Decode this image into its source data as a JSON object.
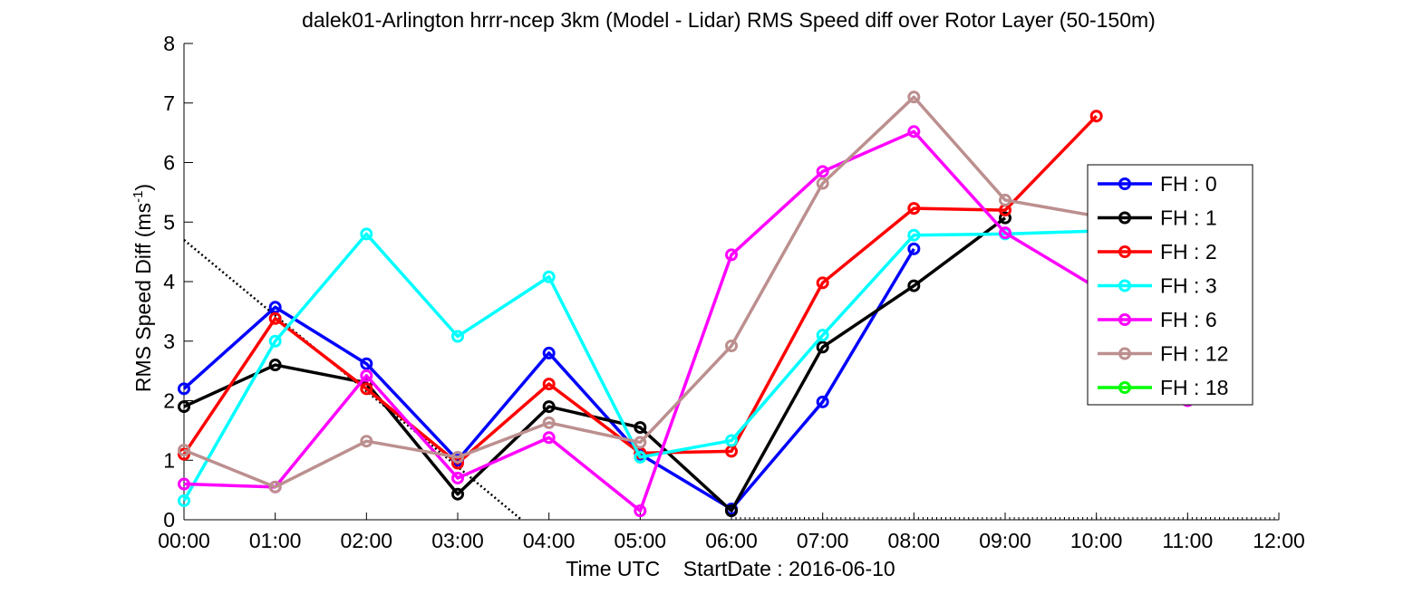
{
  "chart_data": {
    "type": "line",
    "title": "dalek01-Arlington hrrr-ncep 3km (Model - Lidar) RMS Speed diff over Rotor Layer (50-150m)",
    "xlabel": "Time UTC    StartDate : 2016-06-10",
    "ylabel_main": "RMS Speed Diff (ms",
    "ylabel_sup": "-1",
    "ylabel_end": ")",
    "x_ticks": [
      "00:00",
      "01:00",
      "02:00",
      "03:00",
      "04:00",
      "05:00",
      "06:00",
      "07:00",
      "08:00",
      "09:00",
      "10:00",
      "11:00",
      "12:00"
    ],
    "y_ticks": [
      "0",
      "1",
      "2",
      "3",
      "4",
      "5",
      "6",
      "7",
      "8"
    ],
    "xlim": [
      0,
      12
    ],
    "ylim": [
      0,
      8
    ],
    "grid": false,
    "legend_position": "right",
    "series": [
      {
        "name": "FH : 0",
        "color": "#0000ff",
        "x": [
          0,
          1,
          2,
          3,
          4,
          5,
          6,
          7,
          8
        ],
        "values": [
          2.2,
          3.57,
          2.62,
          1.0,
          2.8,
          1.1,
          0.18,
          1.98,
          4.55
        ]
      },
      {
        "name": "FH : 1",
        "color": "#000000",
        "x": [
          0,
          1,
          2,
          3,
          4,
          5,
          6,
          7,
          8,
          9
        ],
        "values": [
          1.9,
          2.6,
          2.3,
          0.43,
          1.9,
          1.55,
          0.15,
          2.9,
          3.93,
          5.07
        ]
      },
      {
        "name": "FH : 2",
        "color": "#ff0000",
        "x": [
          0,
          1,
          2,
          3,
          4,
          5,
          6,
          7,
          8,
          9,
          10
        ],
        "values": [
          1.1,
          3.38,
          2.2,
          0.95,
          2.28,
          1.12,
          1.15,
          3.98,
          5.23,
          5.2,
          6.78
        ]
      },
      {
        "name": "FH : 3",
        "color": "#00ffff",
        "x": [
          0,
          1,
          2,
          3,
          4,
          5,
          6,
          7,
          8,
          9,
          10
        ],
        "values": [
          0.32,
          3.0,
          4.8,
          3.08,
          4.08,
          1.05,
          1.33,
          3.1,
          4.78,
          4.8,
          4.85
        ]
      },
      {
        "name": "FH : 6",
        "color": "#ff00ff",
        "x": [
          0,
          1,
          2,
          3,
          4,
          5,
          6,
          7,
          8,
          9,
          10,
          11
        ],
        "values": [
          0.6,
          0.55,
          2.42,
          0.7,
          1.38,
          0.15,
          4.45,
          5.85,
          6.52,
          4.82,
          3.9,
          2.0
        ]
      },
      {
        "name": "FH : 12",
        "color": "#bc8f8f",
        "x": [
          0,
          1,
          2,
          3,
          4,
          5,
          6,
          7,
          8,
          9,
          10
        ],
        "values": [
          1.17,
          0.55,
          1.32,
          1.05,
          1.63,
          1.3,
          2.92,
          5.65,
          7.1,
          5.37,
          5.1
        ]
      },
      {
        "name": "FH : 18",
        "color": "#00ff00",
        "x": [],
        "values": []
      }
    ],
    "trend_line": {
      "style": "dotted",
      "color": "#000000",
      "x": [
        0,
        3.7
      ],
      "values": [
        4.7,
        0
      ]
    }
  }
}
